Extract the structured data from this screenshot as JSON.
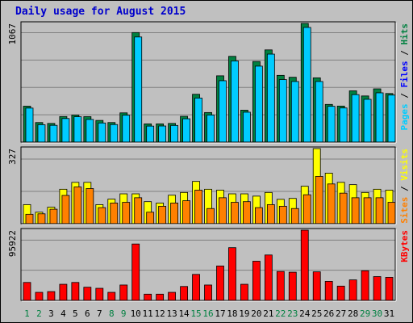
{
  "chart_data": {
    "type": "bar",
    "title": "Daily usage for August 2015",
    "days": [
      "1",
      "2",
      "3",
      "4",
      "5",
      "6",
      "7",
      "8",
      "9",
      "10",
      "11",
      "12",
      "13",
      "14",
      "15",
      "16",
      "17",
      "18",
      "19",
      "20",
      "21",
      "22",
      "23",
      "24",
      "25",
      "26",
      "27",
      "28",
      "29",
      "30",
      "31"
    ],
    "weekend_days": [
      "1",
      "2",
      "8",
      "9",
      "15",
      "16",
      "22",
      "23",
      "29",
      "30"
    ],
    "panels": [
      {
        "id": "pages-files-hits",
        "max_label": "1067",
        "ymax": 1067,
        "legend": [
          "Pages",
          " / ",
          "Files",
          " / ",
          "Hits"
        ],
        "legend_colors": [
          "#00ccff",
          "#000000",
          "#0000ff",
          "#000000",
          "#008040"
        ],
        "series": [
          {
            "name": "Hits",
            "color": "#008040",
            "values": [
              323,
              176,
              168,
              230,
              243,
              229,
              195,
              176,
              263,
              985,
              164,
              164,
              168,
              232,
              430,
              266,
              596,
              771,
              287,
              725,
              829,
              600,
              583,
              1067,
              578,
              339,
              324,
              461,
              415,
              479,
              437
            ]
          },
          {
            "name": "Files",
            "color": "#00ccff",
            "values": [
              306,
              157,
              151,
              212,
              228,
              204,
              172,
              158,
              242,
              945,
              144,
              145,
              150,
              210,
              396,
              244,
              552,
              730,
              269,
              683,
              791,
              562,
              545,
              1031,
              545,
              322,
              307,
              427,
              385,
              443,
              423
            ]
          }
        ]
      },
      {
        "id": "sites-visits",
        "max_label": "327",
        "ymax": 327,
        "legend": [
          "Sites",
          " / ",
          "Visits"
        ],
        "legend_colors": [
          "#ff8000",
          "#000000",
          "#ffff00"
        ],
        "series": [
          {
            "name": "Visits",
            "color": "#ffff00",
            "values": [
              83,
              50,
              72,
              150,
              180,
              180,
              83,
              107,
              130,
              130,
              96,
              90,
              124,
              136,
              184,
              150,
              146,
              130,
              130,
              120,
              136,
              106,
              110,
              163,
              327,
              220,
              180,
              170,
              136,
              150,
              146
            ]
          },
          {
            "name": "Sites",
            "color": "#ff8000",
            "values": [
              41,
              43,
              63,
              123,
              160,
              153,
              70,
              90,
              93,
              113,
              50,
              76,
              90,
              100,
              146,
              66,
              113,
              93,
              96,
              70,
              83,
              76,
              66,
              126,
              206,
              173,
              133,
              113,
              113,
              113,
              93
            ]
          }
        ]
      },
      {
        "id": "kbytes",
        "max_label": "95922",
        "ymax": 95922,
        "legend": [
          "KBytes"
        ],
        "legend_colors": [
          "#ff0000"
        ],
        "series": [
          {
            "name": "KBytes",
            "color": "#ff0000",
            "values": [
              24500,
              11000,
              12000,
              22000,
              24500,
              18000,
              16500,
              11000,
              21000,
              77000,
              8500,
              8500,
              11000,
              19000,
              35500,
              21000,
              47000,
              72000,
              22000,
              53500,
              62000,
              39500,
              38500,
              95922,
              39000,
              26000,
              19500,
              28000,
              40500,
              32500,
              31500
            ]
          }
        ]
      }
    ]
  }
}
